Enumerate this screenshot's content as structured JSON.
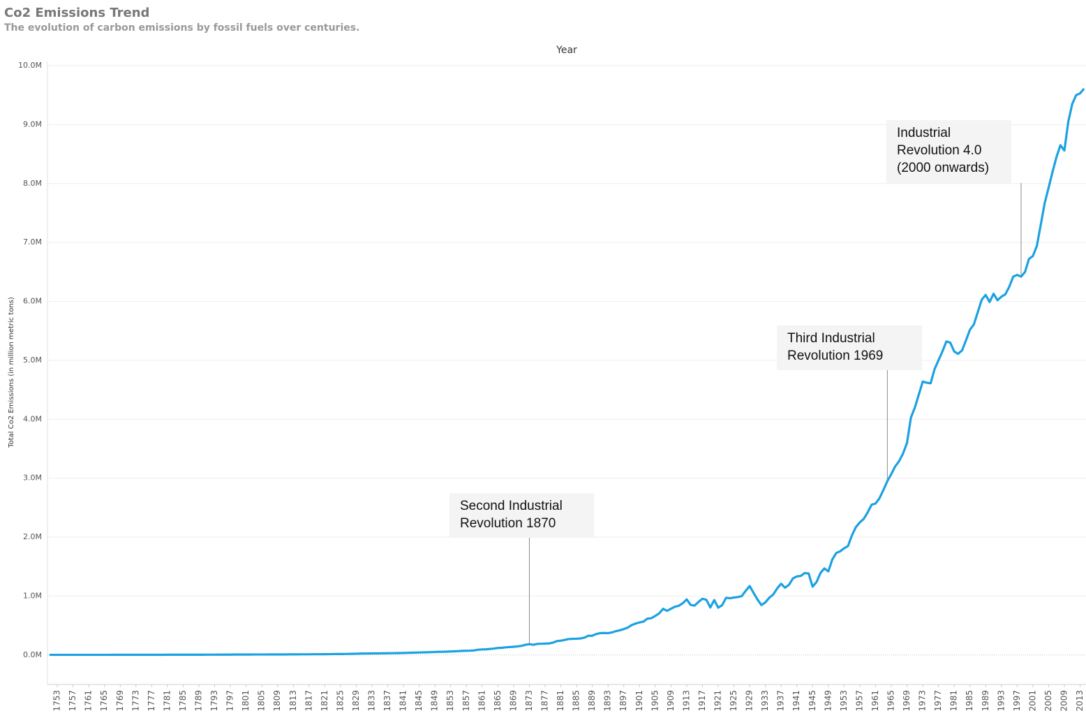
{
  "chart_data": {
    "type": "line",
    "title": "Co2 Emissions Trend",
    "subtitle": "The evolution of carbon emissions by fossil fuels over centuries.",
    "x_label": "Year",
    "y_label": "Total Co2 Emissions (in million metric tons)",
    "color": "#1ba1e2",
    "grid": true,
    "xlim": [
      1750.5,
      2014.5
    ],
    "ylim": [
      -500000,
      10000000
    ],
    "yticks": [
      {
        "value": 0,
        "label": "0.0M"
      },
      {
        "value": 1000000,
        "label": "1.0M"
      },
      {
        "value": 2000000,
        "label": "2.0M"
      },
      {
        "value": 3000000,
        "label": "3.0M"
      },
      {
        "value": 4000000,
        "label": "4.0M"
      },
      {
        "value": 5000000,
        "label": "5.0M"
      },
      {
        "value": 6000000,
        "label": "6.0M"
      },
      {
        "value": 7000000,
        "label": "7.0M"
      },
      {
        "value": 8000000,
        "label": "8.0M"
      },
      {
        "value": 9000000,
        "label": "9.0M"
      },
      {
        "value": 10000000,
        "label": "10.0M"
      }
    ],
    "xticks": [
      1753,
      1757,
      1761,
      1765,
      1769,
      1773,
      1777,
      1781,
      1785,
      1789,
      1793,
      1797,
      1801,
      1805,
      1809,
      1813,
      1817,
      1821,
      1825,
      1829,
      1833,
      1837,
      1841,
      1845,
      1849,
      1853,
      1857,
      1861,
      1865,
      1869,
      1873,
      1877,
      1881,
      1885,
      1889,
      1893,
      1897,
      1901,
      1905,
      1909,
      1913,
      1917,
      1921,
      1925,
      1929,
      1933,
      1937,
      1941,
      1945,
      1949,
      1953,
      1957,
      1961,
      1965,
      1969,
      1973,
      1977,
      1981,
      1985,
      1989,
      1993,
      1997,
      2001,
      2005,
      2009,
      2013
    ],
    "x": [
      1751,
      1752,
      1753,
      1754,
      1755,
      1756,
      1757,
      1758,
      1759,
      1760,
      1761,
      1762,
      1763,
      1764,
      1765,
      1766,
      1767,
      1768,
      1769,
      1770,
      1771,
      1772,
      1773,
      1774,
      1775,
      1776,
      1777,
      1778,
      1779,
      1780,
      1781,
      1782,
      1783,
      1784,
      1785,
      1786,
      1787,
      1788,
      1789,
      1790,
      1791,
      1792,
      1793,
      1794,
      1795,
      1796,
      1797,
      1798,
      1799,
      1800,
      1801,
      1802,
      1803,
      1804,
      1805,
      1806,
      1807,
      1808,
      1809,
      1810,
      1811,
      1812,
      1813,
      1814,
      1815,
      1816,
      1817,
      1818,
      1819,
      1820,
      1821,
      1822,
      1823,
      1824,
      1825,
      1826,
      1827,
      1828,
      1829,
      1830,
      1831,
      1832,
      1833,
      1834,
      1835,
      1836,
      1837,
      1838,
      1839,
      1840,
      1841,
      1842,
      1843,
      1844,
      1845,
      1846,
      1847,
      1848,
      1849,
      1850,
      1851,
      1852,
      1853,
      1854,
      1855,
      1856,
      1857,
      1858,
      1859,
      1860,
      1861,
      1862,
      1863,
      1864,
      1865,
      1866,
      1867,
      1868,
      1869,
      1870,
      1871,
      1872,
      1873,
      1874,
      1875,
      1876,
      1877,
      1878,
      1879,
      1880,
      1881,
      1882,
      1883,
      1884,
      1885,
      1886,
      1887,
      1888,
      1889,
      1890,
      1891,
      1892,
      1893,
      1894,
      1895,
      1896,
      1897,
      1898,
      1899,
      1900,
      1901,
      1902,
      1903,
      1904,
      1905,
      1906,
      1907,
      1908,
      1909,
      1910,
      1911,
      1912,
      1913,
      1914,
      1915,
      1916,
      1917,
      1918,
      1919,
      1920,
      1921,
      1922,
      1923,
      1924,
      1925,
      1926,
      1927,
      1928,
      1929,
      1930,
      1931,
      1932,
      1933,
      1934,
      1935,
      1936,
      1937,
      1938,
      1939,
      1940,
      1941,
      1942,
      1943,
      1944,
      1945,
      1946,
      1947,
      1948,
      1949,
      1950,
      1951,
      1952,
      1953,
      1954,
      1955,
      1956,
      1957,
      1958,
      1959,
      1960,
      1961,
      1962,
      1963,
      1964,
      1965,
      1966,
      1967,
      1968,
      1969,
      1970,
      1971,
      1972,
      1973,
      1974,
      1975,
      1976,
      1977,
      1978,
      1979,
      1980,
      1981,
      1982,
      1983,
      1984,
      1985,
      1986,
      1987,
      1988,
      1989,
      1990,
      1991,
      1992,
      1993,
      1994,
      1995,
      1996,
      1997,
      1998,
      1999,
      2000,
      2001,
      2002,
      2003,
      2004,
      2005,
      2006,
      2007,
      2008,
      2009,
      2010,
      2011,
      2012,
      2013,
      2014
    ],
    "values": [
      3000,
      3000,
      3000,
      3000,
      3000,
      3000,
      3000,
      3000,
      3000,
      3000,
      3000,
      3000,
      3000,
      3000,
      3000,
      3000,
      4000,
      4000,
      4000,
      4000,
      4000,
      4000,
      4000,
      4000,
      4000,
      4000,
      4000,
      4000,
      4000,
      4000,
      5000,
      5000,
      5000,
      5000,
      5000,
      5000,
      5000,
      5000,
      5000,
      5000,
      6000,
      6000,
      6000,
      7000,
      7000,
      7000,
      7000,
      8000,
      8000,
      8000,
      8000,
      8000,
      9000,
      9000,
      9000,
      9000,
      10000,
      10000,
      10000,
      10000,
      10000,
      11000,
      11000,
      11000,
      12000,
      12000,
      12000,
      13000,
      13000,
      13000,
      14000,
      15000,
      16000,
      17000,
      17000,
      18000,
      19000,
      20000,
      22000,
      24000,
      25000,
      26000,
      27000,
      27000,
      28000,
      29000,
      30000,
      31000,
      32000,
      33000,
      35000,
      37000,
      39000,
      41000,
      43000,
      45000,
      47000,
      49000,
      51000,
      54000,
      55000,
      57000,
      60000,
      63000,
      66000,
      70000,
      72000,
      74000,
      78000,
      90000,
      95000,
      97000,
      103000,
      110000,
      119000,
      122000,
      130000,
      135000,
      140000,
      147000,
      156000,
      173000,
      184000,
      173000,
      188000,
      191000,
      194000,
      196000,
      210000,
      236000,
      243000,
      256000,
      271000,
      275000,
      277000,
      281000,
      295000,
      327000,
      327000,
      356000,
      372000,
      374000,
      370000,
      383000,
      405000,
      419000,
      440000,
      465000,
      507000,
      534000,
      552000,
      566000,
      617000,
      624000,
      663000,
      707000,
      784000,
      750000,
      785000,
      819000,
      836000,
      879000,
      943000,
      850000,
      838000,
      901000,
      955000,
      936000,
      806000,
      932000,
      803000,
      845000,
      970000,
      963000,
      975000,
      983000,
      1000000,
      1090000,
      1170000,
      1053000,
      940000,
      847000,
      893000,
      973000,
      1027000,
      1130000,
      1209000,
      1142000,
      1192000,
      1299000,
      1334000,
      1342000,
      1391000,
      1383000,
      1160000,
      1238000,
      1392000,
      1469000,
      1419000,
      1620000,
      1730000,
      1760000,
      1810000,
      1850000,
      2030000,
      2170000,
      2250000,
      2310000,
      2420000,
      2550000,
      2570000,
      2660000,
      2800000,
      2950000,
      3070000,
      3200000,
      3290000,
      3420000,
      3600000,
      4030000,
      4200000,
      4420000,
      4640000,
      4620000,
      4610000,
      4850000,
      5000000,
      5150000,
      5320000,
      5300000,
      5150000,
      5110000,
      5170000,
      5340000,
      5520000,
      5610000,
      5820000,
      6030000,
      6110000,
      5990000,
      6130000,
      6020000,
      6080000,
      6120000,
      6250000,
      6420000,
      6450000,
      6420000,
      6500000,
      6720000,
      6770000,
      6940000,
      7300000,
      7670000,
      7930000,
      8200000,
      8450000,
      8650000,
      8560000,
      9050000,
      9350000,
      9500000,
      9530000,
      9610000
    ],
    "annotations": [
      {
        "x": 1873,
        "lines": [
          "Second Industrial",
          "Revolution 1870"
        ]
      },
      {
        "x": 1964,
        "lines": [
          "Third Industrial",
          "Revolution 1969"
        ]
      },
      {
        "x": 1998,
        "lines": [
          "Industrial",
          "Revolution 4.0",
          "(2000 onwards)"
        ]
      }
    ]
  }
}
